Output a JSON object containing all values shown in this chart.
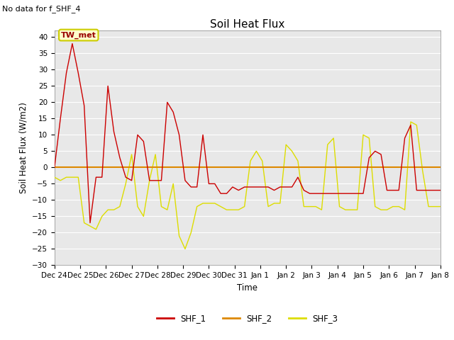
{
  "title": "Soil Heat Flux",
  "ylabel": "Soil Heat Flux (W/m2)",
  "xlabel": "Time",
  "ylim": [
    -30,
    42
  ],
  "yticks": [
    -30,
    -25,
    -20,
    -15,
    -10,
    -5,
    0,
    5,
    10,
    15,
    20,
    25,
    30,
    35,
    40
  ],
  "plot_bg_color": "#e8e8e8",
  "fig_bg_color": "#ffffff",
  "note_text": "No data for f_SHF_4",
  "annotation_text": "TW_met",
  "annotation_bg": "#ffffcc",
  "annotation_border": "#cccc00",
  "legend_labels": [
    "SHF_1",
    "SHF_2",
    "SHF_3"
  ],
  "line_colors": [
    "#cc0000",
    "#dd8800",
    "#dddd00"
  ],
  "xtick_labels": [
    "Dec 24",
    "Dec 25",
    "Dec 26",
    "Dec 27",
    "Dec 28",
    "Dec 29",
    "Dec 30",
    "Dec 31",
    "Jan 1",
    "Jan 2",
    "Jan 3",
    "Jan 4",
    "Jan 5",
    "Jan 6",
    "Jan 7",
    "Jan 8"
  ],
  "shf1": [
    0,
    15,
    29,
    38,
    29,
    19,
    -17,
    -3,
    -3,
    25,
    11,
    3,
    -3,
    -4,
    10,
    8,
    -4,
    -4,
    -4,
    20,
    17,
    10,
    -4,
    -6,
    -6,
    10,
    -5,
    -5,
    -8,
    -8,
    -6,
    -7,
    -6,
    -6,
    -6,
    -6,
    -6,
    -7,
    -6,
    -6,
    -6,
    -3,
    -7,
    -8,
    -8,
    -8,
    -8,
    -8,
    -8,
    -8,
    -8,
    -8,
    -8,
    3,
    5,
    4,
    -7,
    -7,
    -7,
    9,
    13,
    -7,
    -7,
    -7,
    -7,
    -7
  ],
  "shf2": [
    0,
    0,
    0,
    0,
    0,
    0,
    0,
    0,
    0,
    0,
    0,
    0,
    0,
    0,
    0,
    0,
    0,
    0,
    0,
    0,
    0,
    0,
    0,
    0,
    0,
    0,
    0,
    0,
    0,
    0,
    0,
    0,
    0,
    0,
    0,
    0,
    0,
    0,
    0,
    0,
    0,
    0,
    0,
    0,
    0,
    0,
    0,
    0,
    0,
    0,
    0,
    0,
    0,
    0,
    0,
    0,
    0,
    0,
    0,
    0,
    0,
    0,
    0,
    0,
    0,
    0
  ],
  "shf3": [
    -3,
    -4,
    -3,
    -3,
    -3,
    -17,
    -18,
    -19,
    -15,
    -13,
    -13,
    -12,
    -5,
    4,
    -12,
    -15,
    -4,
    4,
    -12,
    -13,
    -5,
    -21,
    -25,
    -20,
    -12,
    -11,
    -11,
    -11,
    -12,
    -13,
    -13,
    -13,
    -12,
    2,
    5,
    2,
    -12,
    -11,
    -11,
    7,
    5,
    2,
    -12,
    -12,
    -12,
    -13,
    7,
    9,
    -12,
    -13,
    -13,
    -13,
    10,
    9,
    -12,
    -13,
    -13,
    -12,
    -12,
    -13,
    14,
    13,
    -1,
    -12,
    -12,
    -12
  ],
  "n_points": 66
}
